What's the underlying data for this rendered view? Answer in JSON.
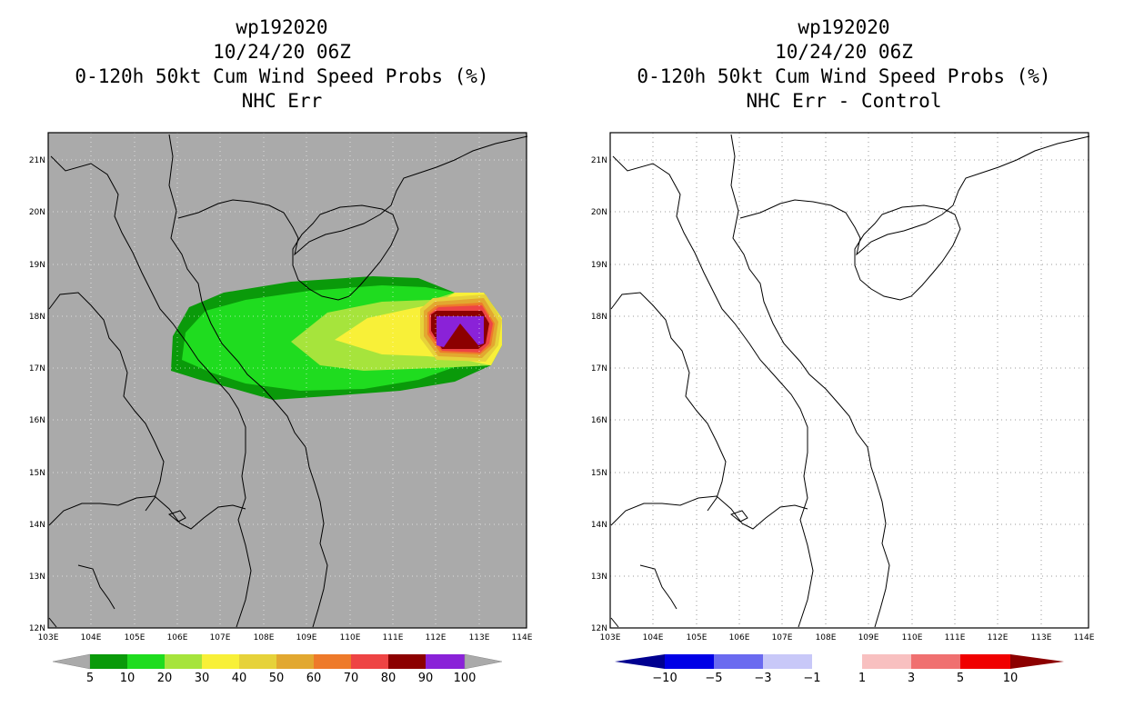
{
  "left_panel": {
    "title_lines": [
      "wp192020",
      "10/24/20 06Z",
      "0-120h 50kt Cum Wind Speed Probs (%)",
      "NHC Err"
    ],
    "colorbar": {
      "labels": [
        "5",
        "10",
        "20",
        "30",
        "40",
        "50",
        "60",
        "70",
        "80",
        "90",
        "100"
      ],
      "colors": [
        "#0a9a0a",
        "#1fdc1f",
        "#a6e43c",
        "#f8f038",
        "#e6d23a",
        "#e2a830",
        "#ee7a2a",
        "#ee4444",
        "#8c0000",
        "#8a22d8"
      ],
      "end_color": "#aaaaaa"
    },
    "background_color": "#aaaaaa"
  },
  "right_panel": {
    "title_lines": [
      "wp192020",
      "10/24/20 06Z",
      "0-120h 50kt Cum Wind Speed Probs (%)",
      "NHC Err - Control"
    ],
    "colorbar": {
      "labels": [
        "−10",
        "−5",
        "−3",
        "−1",
        "1",
        "3",
        "5",
        "10"
      ],
      "colors": [
        "#0000e6",
        "#6a6af0",
        "#c8c8f8",
        "#ffffff",
        "#f8c0c0",
        "#f07070",
        "#f00000"
      ],
      "left_end_color": "#000090",
      "right_end_color": "#8c0000"
    }
  },
  "map": {
    "lon_labels": [
      "103E",
      "104E",
      "105E",
      "106E",
      "107E",
      "108E",
      "109E",
      "110E",
      "111E",
      "112E",
      "113E",
      "114E"
    ],
    "lat_labels": [
      "12N",
      "13N",
      "14N",
      "15N",
      "16N",
      "17N",
      "18N",
      "19N",
      "20N",
      "21N"
    ]
  }
}
